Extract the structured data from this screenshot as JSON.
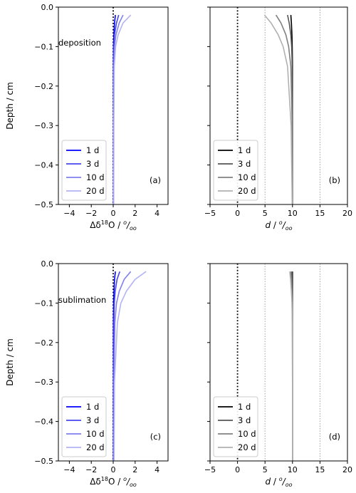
{
  "chart_data": [
    {
      "type": "line",
      "panel_label": "(a)",
      "annotation": "deposition",
      "xlabel": "Δδ18O / o/oo",
      "ylabel": "Depth / cm",
      "xlim": [
        -5,
        5
      ],
      "ylim": [
        -0.5,
        0.0
      ],
      "xticks": [
        "−4",
        "−2",
        "0",
        "2",
        "4"
      ],
      "yticks": [
        "0.0",
        "−0.1",
        "−0.2",
        "−0.3",
        "−0.4",
        "−0.5"
      ],
      "xtick_values": [
        -4,
        -2,
        0,
        2,
        4
      ],
      "ytick_values": [
        0.0,
        -0.1,
        -0.2,
        -0.3,
        -0.4,
        -0.5
      ],
      "reference_lines": [
        {
          "x": 0,
          "style": "dotted",
          "color": "#000000"
        }
      ],
      "legend": "lower-left",
      "series": [
        {
          "name": "1 d",
          "color": "#0000ff",
          "x": [
            0.2,
            0.12,
            0.06,
            0.03,
            0.02,
            0.02,
            0.02
          ],
          "y": [
            -0.02,
            -0.04,
            -0.07,
            -0.1,
            -0.15,
            -0.3,
            -0.5
          ]
        },
        {
          "name": "3 d",
          "color": "#4646ee",
          "x": [
            0.5,
            0.3,
            0.12,
            0.06,
            0.04,
            0.03,
            0.03
          ],
          "y": [
            -0.02,
            -0.04,
            -0.07,
            -0.1,
            -0.15,
            -0.3,
            -0.5
          ]
        },
        {
          "name": "10 d",
          "color": "#8080ee",
          "x": [
            0.9,
            0.55,
            0.25,
            0.12,
            0.06,
            0.04,
            0.04
          ],
          "y": [
            -0.02,
            -0.04,
            -0.07,
            -0.1,
            -0.15,
            -0.3,
            -0.5
          ]
        },
        {
          "name": "20 d",
          "color": "#b3b3f5",
          "x": [
            1.6,
            0.9,
            0.45,
            0.22,
            0.1,
            0.06,
            0.05
          ],
          "y": [
            -0.02,
            -0.04,
            -0.07,
            -0.1,
            -0.15,
            -0.3,
            -0.5
          ]
        }
      ]
    },
    {
      "type": "line",
      "panel_label": "(b)",
      "xlabel": "d / o/oo",
      "xlim": [
        -5,
        20
      ],
      "ylim": [
        -0.5,
        0.0
      ],
      "xticks": [
        "−5",
        "0",
        "5",
        "10",
        "15",
        "20"
      ],
      "xtick_values": [
        -5,
        0,
        5,
        10,
        15,
        20
      ],
      "ytick_values": [
        0.0,
        -0.1,
        -0.2,
        -0.3,
        -0.4,
        -0.5
      ],
      "reference_lines": [
        {
          "x": 0,
          "style": "dotted",
          "color": "#000000"
        },
        {
          "x": 5,
          "style": "dotted",
          "color": "#999999"
        },
        {
          "x": 15,
          "style": "dotted",
          "color": "#999999"
        }
      ],
      "legend": "lower-left",
      "series": [
        {
          "name": "1 d",
          "color": "#000000",
          "x": [
            9.7,
            9.8,
            9.9,
            9.95,
            10.0,
            10.0,
            10.0
          ],
          "y": [
            -0.02,
            -0.04,
            -0.07,
            -0.1,
            -0.15,
            -0.3,
            -0.5
          ]
        },
        {
          "name": "3 d",
          "color": "#555555",
          "x": [
            9.1,
            9.4,
            9.7,
            9.85,
            9.95,
            10.0,
            10.0
          ],
          "y": [
            -0.02,
            -0.04,
            -0.07,
            -0.1,
            -0.15,
            -0.3,
            -0.5
          ]
        },
        {
          "name": "10 d",
          "color": "#808080",
          "x": [
            7.0,
            7.9,
            8.8,
            9.3,
            9.7,
            9.95,
            10.0
          ],
          "y": [
            -0.02,
            -0.04,
            -0.07,
            -0.1,
            -0.15,
            -0.3,
            -0.5
          ]
        },
        {
          "name": "20 d",
          "color": "#b0b0b0",
          "x": [
            4.9,
            6.1,
            7.4,
            8.3,
            9.1,
            9.75,
            9.95
          ],
          "y": [
            -0.02,
            -0.04,
            -0.07,
            -0.1,
            -0.15,
            -0.3,
            -0.5
          ]
        }
      ]
    },
    {
      "type": "line",
      "panel_label": "(c)",
      "annotation": "sublimation",
      "xlabel": "Δδ18O / o/oo",
      "ylabel": "Depth / cm",
      "xlim": [
        -5,
        5
      ],
      "ylim": [
        -0.5,
        0.0
      ],
      "xticks": [
        "−4",
        "−2",
        "0",
        "2",
        "4"
      ],
      "yticks": [
        "0.0",
        "−0.1",
        "−0.2",
        "−0.3",
        "−0.4",
        "−0.5"
      ],
      "xtick_values": [
        -4,
        -2,
        0,
        2,
        4
      ],
      "ytick_values": [
        0.0,
        -0.1,
        -0.2,
        -0.3,
        -0.4,
        -0.5
      ],
      "reference_lines": [
        {
          "x": 0,
          "style": "dotted",
          "color": "#000000"
        }
      ],
      "legend": "lower-left",
      "series": [
        {
          "name": "1 d",
          "color": "#0000ff",
          "x": [
            0.2,
            0.12,
            0.07,
            0.04,
            0.02,
            0.02,
            0.02
          ],
          "y": [
            -0.02,
            -0.04,
            -0.07,
            -0.1,
            -0.15,
            -0.3,
            -0.5
          ]
        },
        {
          "name": "3 d",
          "color": "#4646ee",
          "x": [
            0.6,
            0.35,
            0.18,
            0.1,
            0.06,
            0.04,
            0.04
          ],
          "y": [
            -0.02,
            -0.04,
            -0.07,
            -0.1,
            -0.15,
            -0.3,
            -0.5
          ]
        },
        {
          "name": "10 d",
          "color": "#8080ee",
          "x": [
            1.6,
            1.0,
            0.55,
            0.3,
            0.15,
            0.07,
            0.06
          ],
          "y": [
            -0.02,
            -0.04,
            -0.07,
            -0.1,
            -0.15,
            -0.3,
            -0.5
          ]
        },
        {
          "name": "20 d",
          "color": "#b3b3f5",
          "x": [
            3.0,
            2.0,
            1.2,
            0.7,
            0.38,
            0.12,
            0.08
          ],
          "y": [
            -0.02,
            -0.04,
            -0.07,
            -0.1,
            -0.15,
            -0.3,
            -0.5
          ]
        }
      ]
    },
    {
      "type": "line",
      "panel_label": "(d)",
      "xlabel": "d / o/oo",
      "xlim": [
        -5,
        20
      ],
      "ylim": [
        -0.5,
        0.0
      ],
      "xticks": [
        "−5",
        "0",
        "5",
        "10",
        "15",
        "20"
      ],
      "xtick_values": [
        -5,
        0,
        5,
        10,
        15,
        20
      ],
      "ytick_values": [
        0.0,
        -0.1,
        -0.2,
        -0.3,
        -0.4,
        -0.5
      ],
      "reference_lines": [
        {
          "x": 0,
          "style": "dotted",
          "color": "#000000"
        },
        {
          "x": 5,
          "style": "dotted",
          "color": "#999999"
        },
        {
          "x": 15,
          "style": "dotted",
          "color": "#999999"
        }
      ],
      "legend": "lower-left",
      "series": [
        {
          "name": "1 d",
          "color": "#000000",
          "x": [
            10.0,
            10.0,
            10.0,
            10.0,
            10.0,
            10.0,
            10.0
          ],
          "y": [
            -0.02,
            -0.04,
            -0.07,
            -0.1,
            -0.15,
            -0.3,
            -0.5
          ]
        },
        {
          "name": "3 d",
          "color": "#555555",
          "x": [
            9.9,
            9.93,
            9.96,
            9.98,
            10.0,
            10.0,
            10.0
          ],
          "y": [
            -0.02,
            -0.04,
            -0.07,
            -0.1,
            -0.15,
            -0.3,
            -0.5
          ]
        },
        {
          "name": "10 d",
          "color": "#808080",
          "x": [
            9.7,
            9.8,
            9.88,
            9.94,
            9.98,
            10.0,
            10.0
          ],
          "y": [
            -0.02,
            -0.04,
            -0.07,
            -0.1,
            -0.15,
            -0.3,
            -0.5
          ]
        },
        {
          "name": "20 d",
          "color": "#b0b0b0",
          "x": [
            9.5,
            9.65,
            9.8,
            9.9,
            9.96,
            10.0,
            10.0
          ],
          "y": [
            -0.02,
            -0.04,
            -0.07,
            -0.1,
            -0.15,
            -0.3,
            -0.5
          ]
        }
      ]
    }
  ]
}
